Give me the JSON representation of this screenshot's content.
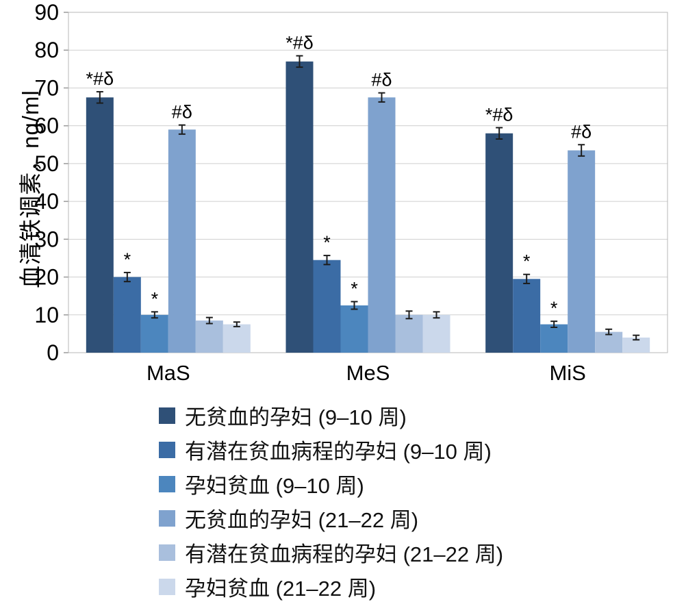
{
  "chart_data": {
    "type": "bar",
    "title": "",
    "ylabel": "血清铁调素，ng/ml",
    "xlabel": "",
    "ylim": [
      0,
      90
    ],
    "ytick_step": 10,
    "grid": true,
    "legend_position": "bottom",
    "categories": [
      "MaS",
      "MeS",
      "MiS"
    ],
    "series": [
      {
        "name": "无贫血的孕妇 (9–10 周)",
        "color": "#2F5077",
        "values": [
          67.5,
          77.0,
          58.0
        ],
        "errors": [
          1.5,
          1.5,
          1.5
        ],
        "annotations": [
          "*#δ",
          "*#δ",
          "*#δ"
        ]
      },
      {
        "name": "有潜在贫血病程的孕妇 (9–10 周)",
        "color": "#3B6CA5",
        "values": [
          20.0,
          24.5,
          19.5
        ],
        "errors": [
          1.2,
          1.2,
          1.2
        ],
        "annotations": [
          "*",
          "*",
          "*"
        ]
      },
      {
        "name": "孕妇贫血 (9–10 周)",
        "color": "#4C86BE",
        "values": [
          10.0,
          12.5,
          7.5
        ],
        "errors": [
          0.8,
          1.0,
          0.8
        ],
        "annotations": [
          "*",
          "*",
          "*"
        ]
      },
      {
        "name": "无贫血的孕妇 (21–22 周)",
        "color": "#7FA2CE",
        "values": [
          59.0,
          67.5,
          53.5
        ],
        "errors": [
          1.2,
          1.2,
          1.5
        ],
        "annotations": [
          "#δ",
          "#δ",
          "#δ"
        ]
      },
      {
        "name": "有潜在贫血病程的孕妇 (21–22 周)",
        "color": "#A9BFDD",
        "values": [
          8.5,
          10.0,
          5.5
        ],
        "errors": [
          0.8,
          1.0,
          0.7
        ],
        "annotations": [
          "",
          "",
          ""
        ]
      },
      {
        "name": "孕妇贫血 (21–22 周)",
        "color": "#CBD8EB",
        "values": [
          7.5,
          10.0,
          4.0
        ],
        "errors": [
          0.6,
          0.8,
          0.6
        ],
        "annotations": [
          "",
          "",
          ""
        ]
      }
    ]
  }
}
